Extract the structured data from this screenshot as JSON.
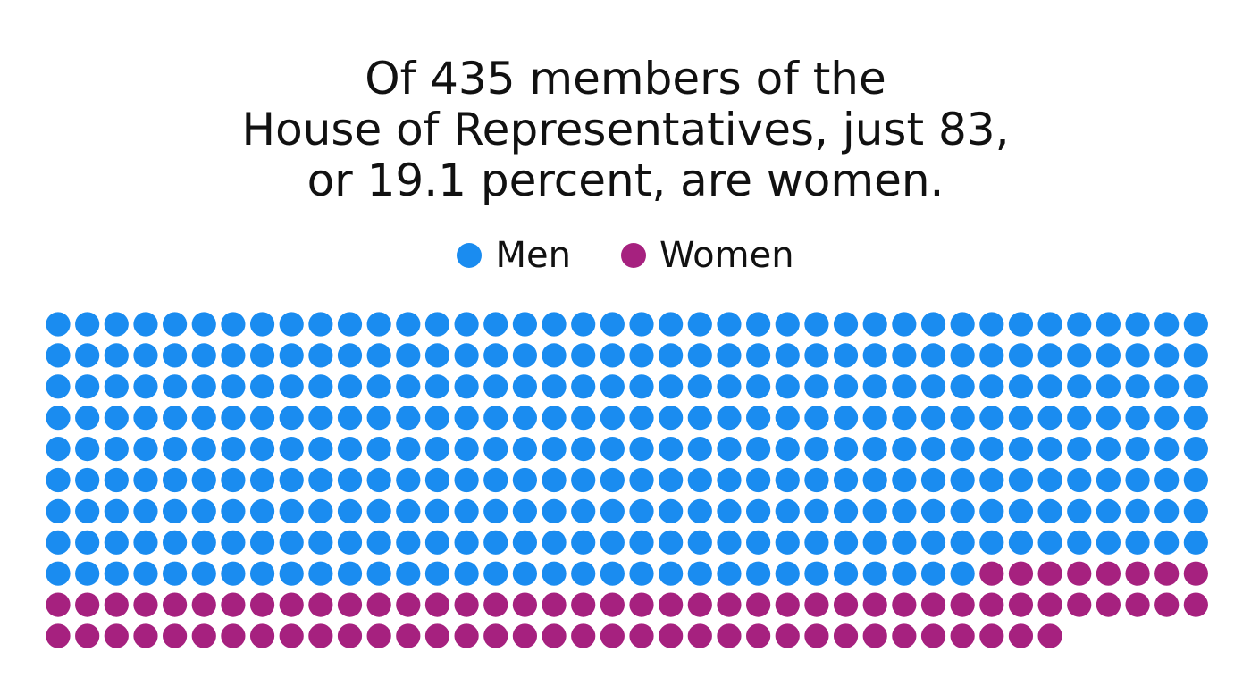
{
  "chart_data": {
    "type": "waffle",
    "title_lines": [
      "Of 435 members of the",
      "House of Representatives, just 83,",
      "or 19.1 percent, are women."
    ],
    "total": 435,
    "series": [
      {
        "name": "Men",
        "value": 352,
        "color": "#1a8cf0"
      },
      {
        "name": "Women",
        "value": 83,
        "color": "#a6217f"
      }
    ],
    "grid": {
      "columns": 40,
      "fill_order": "row-major, left-to-right, top-to-bottom"
    }
  }
}
